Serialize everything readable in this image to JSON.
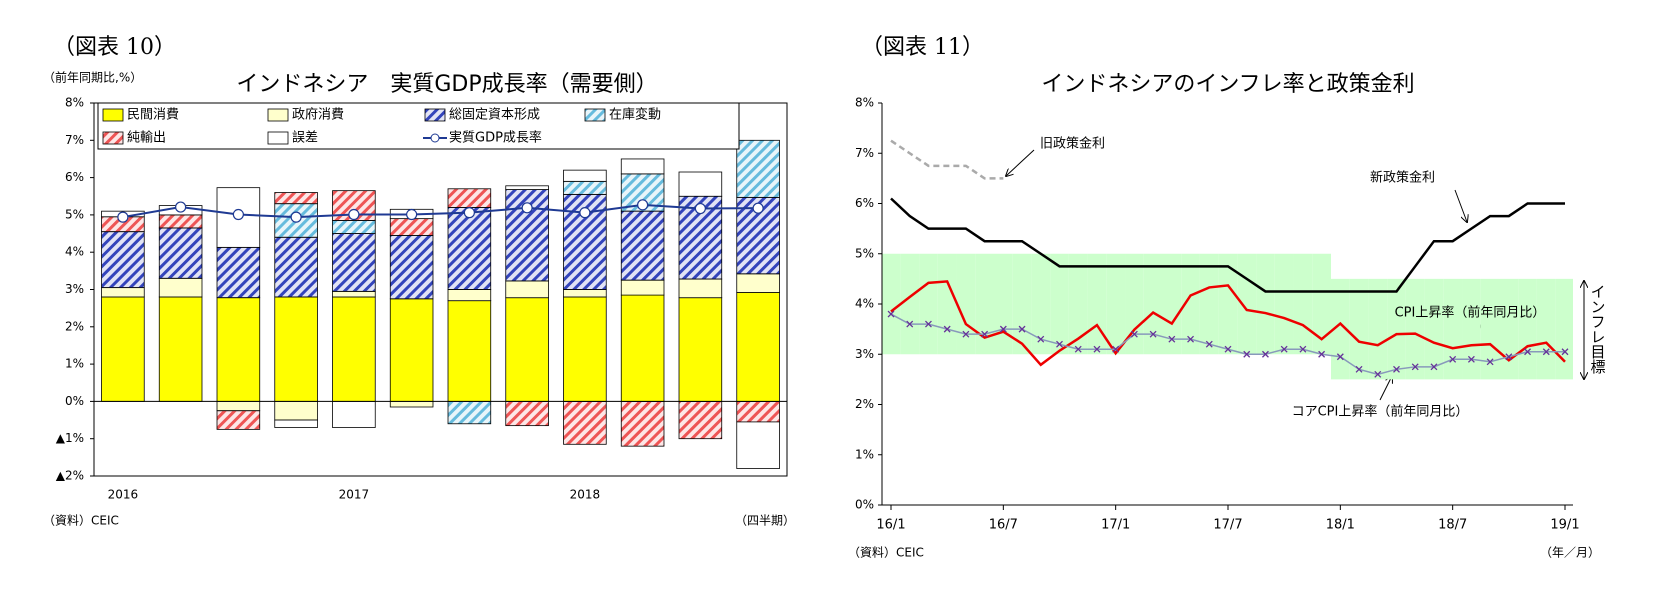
{
  "chart_data": [
    {
      "type": "bar",
      "figure_label": "（図表 10）",
      "title": "インドネシア　実質GDP成長率（需要側）",
      "y_unit_label": "（前年同期比,%）",
      "source": "（資料）CEIC",
      "x_unit_label": "（四半期）",
      "categories": [
        "2016",
        null,
        null,
        null,
        "2017",
        null,
        null,
        null,
        "2018",
        null,
        null,
        null
      ],
      "ylim": [
        -2,
        8
      ],
      "yticks": [
        {
          "value": -2,
          "label": "▲2%"
        },
        {
          "value": -1,
          "label": "▲1%"
        },
        {
          "value": 0,
          "label": "0%"
        },
        {
          "value": 1,
          "label": "1%"
        },
        {
          "value": 2,
          "label": "2%"
        },
        {
          "value": 3,
          "label": "3%"
        },
        {
          "value": 4,
          "label": "4%"
        },
        {
          "value": 5,
          "label": "5%"
        },
        {
          "value": 6,
          "label": "6%"
        },
        {
          "value": 7,
          "label": "7%"
        },
        {
          "value": 8,
          "label": "8%"
        }
      ],
      "series": [
        {
          "name": "民間消費",
          "type": "bar",
          "color": "#ffff00",
          "hatch": false,
          "values": [
            2.8,
            2.8,
            2.78,
            2.8,
            2.8,
            2.75,
            2.7,
            2.78,
            2.8,
            2.85,
            2.78,
            2.92
          ]
        },
        {
          "name": "政府消費",
          "type": "bar",
          "color": "#ffffcc",
          "hatch": false,
          "values": [
            0.25,
            0.5,
            -0.25,
            -0.5,
            0.15,
            -0.15,
            0.3,
            0.45,
            0.2,
            0.4,
            0.5,
            0.5
          ]
        },
        {
          "name": "総固定資本形成",
          "type": "bar",
          "color": "#3344bb",
          "hatch": true,
          "values": [
            1.5,
            1.35,
            1.35,
            1.6,
            1.55,
            1.7,
            2.2,
            2.45,
            2.55,
            1.85,
            2.22,
            2.05
          ]
        },
        {
          "name": "在庫変動",
          "type": "bar",
          "color": "#66bbdd",
          "hatch": true,
          "values": [
            0,
            0,
            0,
            0.9,
            0.35,
            0,
            -0.6,
            0,
            0.35,
            1.0,
            0,
            1.53
          ]
        },
        {
          "name": "純輸出",
          "type": "bar",
          "color": "#ee5555",
          "hatch": true,
          "values": [
            0.4,
            0.35,
            -0.5,
            0.3,
            0.8,
            0.45,
            0.5,
            -0.65,
            -1.15,
            -1.2,
            -1.0,
            -0.55
          ]
        },
        {
          "name": "誤差",
          "type": "bar",
          "color": "#ffffff",
          "hatch": false,
          "values": [
            0.15,
            0.25,
            1.6,
            -0.2,
            -0.7,
            0.25,
            0,
            0.1,
            0.3,
            0.4,
            0.65,
            -1.25
          ]
        },
        {
          "name": "実質GDP成長率",
          "type": "line",
          "color": "#1f3a93",
          "values": [
            4.94,
            5.21,
            5.01,
            4.94,
            5.01,
            5.01,
            5.06,
            5.19,
            5.06,
            5.27,
            5.17,
            5.18
          ]
        }
      ]
    },
    {
      "type": "line",
      "figure_label": "（図表 11）",
      "title": "インドネシアのインフレ率と政策金利",
      "source": "（資料）CEIC",
      "x_unit_label": "（年／月）",
      "categories": [
        "16/1",
        null,
        null,
        null,
        null,
        null,
        "16/7",
        null,
        null,
        null,
        null,
        null,
        "17/1",
        null,
        null,
        null,
        null,
        null,
        "17/7",
        null,
        null,
        null,
        null,
        null,
        "18/1",
        null,
        null,
        null,
        null,
        null,
        "18/7",
        null,
        null,
        null,
        null,
        null,
        "19/1"
      ],
      "ylim": [
        0,
        8
      ],
      "yticks": [
        {
          "value": 0,
          "label": "0%"
        },
        {
          "value": 1,
          "label": "1%"
        },
        {
          "value": 2,
          "label": "2%"
        },
        {
          "value": 3,
          "label": "3%"
        },
        {
          "value": 4,
          "label": "4%"
        },
        {
          "value": 5,
          "label": "5%"
        },
        {
          "value": 6,
          "label": "6%"
        },
        {
          "value": 7,
          "label": "7%"
        },
        {
          "value": 8,
          "label": "8%"
        }
      ],
      "target_band": {
        "label": "インフレ目標",
        "color": "#ccffcc",
        "low": [
          3,
          3,
          3,
          3,
          3,
          3,
          3,
          3,
          3,
          3,
          3,
          3,
          3,
          3,
          3,
          3,
          3,
          3,
          3,
          3,
          3,
          3,
          3,
          3,
          2.5,
          2.5,
          2.5,
          2.5,
          2.5,
          2.5,
          2.5,
          2.5,
          2.5,
          2.5,
          2.5,
          2.5,
          2.5
        ],
        "high": [
          5,
          5,
          5,
          5,
          5,
          5,
          5,
          5,
          5,
          5,
          5,
          5,
          5,
          5,
          5,
          5,
          5,
          5,
          5,
          5,
          5,
          5,
          5,
          5,
          4.5,
          4.5,
          4.5,
          4.5,
          4.5,
          4.5,
          4.5,
          4.5,
          4.5,
          4.5,
          4.5,
          4.5,
          4.5
        ]
      },
      "series": [
        {
          "name": "旧政策金利",
          "color": "#aaaaaa",
          "dashed": true,
          "marker": null,
          "values": [
            7.25,
            7.0,
            6.75,
            6.75,
            6.75,
            6.5,
            6.5,
            null,
            null,
            null,
            null,
            null,
            null,
            null,
            null,
            null,
            null,
            null,
            null,
            null,
            null,
            null,
            null,
            null,
            null,
            null,
            null,
            null,
            null,
            null,
            null,
            null,
            null,
            null,
            null,
            null,
            null
          ]
        },
        {
          "name": "新政策金利",
          "color": "#000000",
          "dashed": false,
          "marker": null,
          "values": [
            6.1,
            5.75,
            5.5,
            5.5,
            5.5,
            5.25,
            5.25,
            5.25,
            5.0,
            4.75,
            4.75,
            4.75,
            4.75,
            4.75,
            4.75,
            4.75,
            4.75,
            4.75,
            4.75,
            4.5,
            4.25,
            4.25,
            4.25,
            4.25,
            4.25,
            4.25,
            4.25,
            4.25,
            4.75,
            5.25,
            5.25,
            5.5,
            5.75,
            5.75,
            6.0,
            6.0,
            6.0
          ]
        },
        {
          "name": "CPI上昇率（前年同月比）",
          "color": "#ee0000",
          "dashed": false,
          "marker": null,
          "values": [
            3.85,
            4.14,
            4.42,
            4.45,
            3.6,
            3.33,
            3.45,
            3.21,
            2.79,
            3.07,
            3.31,
            3.58,
            3.02,
            3.49,
            3.83,
            3.61,
            4.17,
            4.33,
            4.37,
            3.88,
            3.82,
            3.72,
            3.58,
            3.3,
            3.61,
            3.25,
            3.18,
            3.4,
            3.41,
            3.23,
            3.12,
            3.18,
            3.2,
            2.88,
            3.16,
            3.23,
            2.85
          ]
        },
        {
          "name": "コアCPI上昇率（前年同月比）",
          "color": "#8899bb",
          "dashed": false,
          "marker": "x",
          "values": [
            3.8,
            3.6,
            3.6,
            3.5,
            3.4,
            3.4,
            3.5,
            3.5,
            3.3,
            3.2,
            3.1,
            3.1,
            3.1,
            3.4,
            3.4,
            3.3,
            3.3,
            3.2,
            3.1,
            3.0,
            3.0,
            3.1,
            3.1,
            3.0,
            2.95,
            2.7,
            2.6,
            2.7,
            2.75,
            2.75,
            2.9,
            2.9,
            2.85,
            2.95,
            3.05,
            3.05,
            3.05
          ]
        }
      ]
    }
  ]
}
